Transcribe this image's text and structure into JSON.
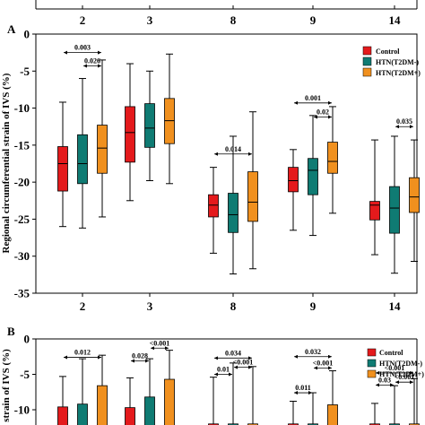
{
  "colors": {
    "control": "#e41a1c",
    "htn_t2dm_neg": "#0f7b73",
    "htn_t2dm_pos": "#f0901e"
  },
  "top_strip": {
    "categories": [
      "2",
      "3",
      "8",
      "9",
      "14"
    ]
  },
  "panel_a": {
    "label": "A",
    "legend": [
      "Control",
      "HTN(T2DM-)",
      "HTN(T2DM+)"
    ]
  },
  "panel_b": {
    "label": "B",
    "legend": [
      "Control",
      "HTN(T2DM-)",
      "HTN(T2DM+)"
    ]
  },
  "chart_data": [
    {
      "type": "box",
      "title": "",
      "xlabel": "",
      "ylabel": "Regional circumferential strain of IVS (%)",
      "ylim": [
        -35,
        0
      ],
      "yticks": [
        0,
        -5,
        -10,
        -15,
        -20,
        -25,
        -30,
        -35
      ],
      "categories": [
        "2",
        "3",
        "8",
        "9",
        "14"
      ],
      "legend_position": "top-right",
      "series": [
        {
          "name": "Control",
          "boxes": [
            {
              "min": -26,
              "q1": -21.2,
              "median": -17.5,
              "q3": -15.2,
              "max": -9.2
            },
            {
              "min": -22.5,
              "q1": -17.3,
              "median": -13.3,
              "q3": -9.8,
              "max": -4
            },
            {
              "min": -29.6,
              "q1": -24.7,
              "median": -23.1,
              "q3": -21.7,
              "max": -18
            },
            {
              "min": -26.5,
              "q1": -21.3,
              "median": -19.8,
              "q3": -18,
              "max": -15.6
            },
            {
              "min": -29.8,
              "q1": -25.1,
              "median": -23.1,
              "q3": -22.6,
              "max": -14.3
            }
          ]
        },
        {
          "name": "HTN(T2DM-)",
          "boxes": [
            {
              "min": -26.2,
              "q1": -20.2,
              "median": -17.5,
              "q3": -13.6,
              "max": -6
            },
            {
              "min": -19.8,
              "q1": -15.3,
              "median": -12.7,
              "q3": -9.4,
              "max": -5
            },
            {
              "min": -32.4,
              "q1": -26.8,
              "median": -24.4,
              "q3": -21.5,
              "max": -13.8
            },
            {
              "min": -27.2,
              "q1": -21.7,
              "median": -18.4,
              "q3": -16.8,
              "max": -11
            },
            {
              "min": -32.3,
              "q1": -26.9,
              "median": -23.5,
              "q3": -20.6,
              "max": -13.8
            }
          ]
        },
        {
          "name": "HTN(T2DM+)",
          "boxes": [
            {
              "min": -24.7,
              "q1": -18.8,
              "median": -15.4,
              "q3": -12.3,
              "max": -3.5
            },
            {
              "min": -20.2,
              "q1": -14.8,
              "median": -11.7,
              "q3": -8.7,
              "max": -2.7
            },
            {
              "min": -31.7,
              "q1": -25.3,
              "median": -22.7,
              "q3": -18.6,
              "max": -10.5
            },
            {
              "min": -24.2,
              "q1": -18.8,
              "median": -17.2,
              "q3": -14.6,
              "max": -9.8
            },
            {
              "min": -30.7,
              "q1": -24.1,
              "median": -22,
              "q3": -19.4,
              "max": -14.3
            }
          ]
        }
      ],
      "annotations": [
        {
          "text": "0.003",
          "category": "2",
          "from": "Control",
          "to": "HTN(T2DM+)",
          "y": -2.5
        },
        {
          "text": "0.026",
          "category": "2",
          "from": "HTN(T2DM-)",
          "to": "HTN(T2DM+)",
          "y": -4.3
        },
        {
          "text": "0.014",
          "category": "8",
          "from": "Control",
          "to": "HTN(T2DM+)",
          "y": -16.2
        },
        {
          "text": "0.001",
          "category": "9",
          "from": "Control",
          "to": "HTN(T2DM+)",
          "y": -9.3
        },
        {
          "text": "0.02",
          "category": "9",
          "from": "HTN(T2DM-)",
          "to": "HTN(T2DM+)",
          "y": -11.2
        },
        {
          "text": "0.035",
          "category": "14",
          "from": "HTN(T2DM-)",
          "to": "HTN(T2DM+)",
          "y": -12.5
        }
      ]
    },
    {
      "type": "box",
      "title": "",
      "xlabel": "",
      "ylabel": "strain of IVS (%)",
      "ylim": [
        -10,
        0
      ],
      "yticks": [
        0,
        -5,
        -10
      ],
      "categories": [
        "2",
        "3",
        "8",
        "9",
        "14"
      ],
      "legend_position": "top-right",
      "series": [
        {
          "name": "Control",
          "boxes": [
            {
              "max": -5.3,
              "q3": -9.6
            },
            {
              "max": -5.5,
              "q3": -9.7
            },
            {
              "max": -5.4,
              "q3": -12
            },
            {
              "max": -8.8,
              "q3": -12
            },
            {
              "max": -9.1,
              "q3": -12
            }
          ]
        },
        {
          "name": "HTN(T2DM-)",
          "boxes": [
            {
              "max": -2.8,
              "q3": -9.2
            },
            {
              "max": -2.8,
              "q3": -8.2
            },
            {
              "max": -3.4,
              "q3": -12
            },
            {
              "max": -7.6,
              "q3": -12
            },
            {
              "max": -6.6,
              "q3": -12
            }
          ]
        },
        {
          "name": "HTN(T2DM+)",
          "boxes": [
            {
              "max": -2.3,
              "q3": -6.6
            },
            {
              "max": -1.6,
              "q3": -5.7
            },
            {
              "max": -3.9,
              "q3": -12
            },
            {
              "max": -4.5,
              "q3": -9.3
            },
            {
              "max": -5.6,
              "q3": -12
            }
          ]
        }
      ],
      "annotations": [
        {
          "text": "0.012",
          "category": "2",
          "from": "Control",
          "to": "HTN(T2DM+)",
          "y": -2.6
        },
        {
          "text": "0.028",
          "category": "3",
          "from": "Control",
          "to": "HTN(T2DM-)",
          "y": -3.1
        },
        {
          "text": "<0.001",
          "category": "3",
          "from": "HTN(T2DM-)",
          "to": "HTN(T2DM+)",
          "y": -1.3
        },
        {
          "text": "0.034",
          "category": "8",
          "from": "Control",
          "to": "HTN(T2DM+)",
          "y": -2.7
        },
        {
          "text": "0.01",
          "category": "8",
          "from": "Control",
          "to": "HTN(T2DM-)",
          "y": -5
        },
        {
          "text": "<0.001",
          "category": "8",
          "from": "HTN(T2DM-)",
          "to": "HTN(T2DM+)",
          "y": -4
        },
        {
          "text": "0.032",
          "category": "9",
          "from": "Control",
          "to": "HTN(T2DM+)",
          "y": -2.5
        },
        {
          "text": "<0.001",
          "category": "9",
          "from": "HTN(T2DM-)",
          "to": "HTN(T2DM+)",
          "y": -4.1
        },
        {
          "text": "0.011",
          "category": "9",
          "from": "Control",
          "to": "HTN(T2DM-)",
          "y": -7.6
        },
        {
          "text": "<0.001",
          "category": "14",
          "from": "Control",
          "to": "HTN(T2DM+)",
          "y": -4.8
        },
        {
          "text": "0.03",
          "category": "14",
          "from": "Control",
          "to": "HTN(T2DM-)",
          "y": -6.5
        },
        {
          "text": "<0.001",
          "category": "14",
          "from": "HTN(T2DM-)",
          "to": "HTN(T2DM+)",
          "y": -6.1
        }
      ]
    }
  ]
}
